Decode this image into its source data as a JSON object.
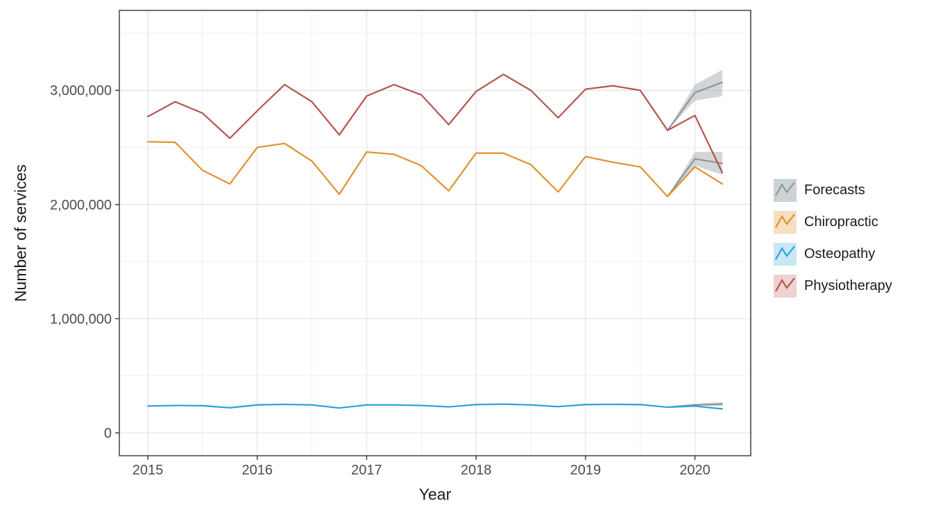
{
  "axes": {
    "x_title": "Year",
    "y_title": "Number of services"
  },
  "legend": {
    "items": [
      {
        "label": "Forecasts",
        "line": "#8c979c",
        "fill": "#ccd3d6"
      },
      {
        "label": "Chiropractic",
        "line": "#e0912f",
        "fill": "#f6dfc1"
      },
      {
        "label": "Osteopathy",
        "line": "#29a3d7",
        "fill": "#c8e7f3"
      },
      {
        "label": "Physiotherapy",
        "line": "#b5534e",
        "fill": "#edd2d0"
      }
    ]
  },
  "theme": {
    "panel_border": "#333333",
    "grid_major": "#e3e3e3",
    "grid_minor": "#f0f0f0",
    "tick_color": "#333333",
    "tick_label_color": "#4d4d4d",
    "background": "#ffffff"
  },
  "chart_data": {
    "type": "line",
    "title": "",
    "xlabel": "Year",
    "ylabel": "Number of services",
    "x_domain": [
      2014.74,
      2020.51
    ],
    "y_domain": [
      -200000,
      3700000
    ],
    "x_ticks": [
      {
        "v": 2015,
        "label": "2015"
      },
      {
        "v": 2016,
        "label": "2016"
      },
      {
        "v": 2017,
        "label": "2017"
      },
      {
        "v": 2018,
        "label": "2018"
      },
      {
        "v": 2019,
        "label": "2019"
      },
      {
        "v": 2020,
        "label": "2020"
      }
    ],
    "x_minor": [
      2015.5,
      2016.5,
      2017.5,
      2018.5,
      2019.5,
      2020.5
    ],
    "y_ticks": [
      {
        "v": 0,
        "label": "0"
      },
      {
        "v": 1000000,
        "label": "1,000,000"
      },
      {
        "v": 2000000,
        "label": "2,000,000"
      },
      {
        "v": 3000000,
        "label": "3,000,000"
      }
    ],
    "y_minor": [
      500000,
      1500000,
      2500000,
      3500000
    ],
    "x_quarters": [
      2015.0,
      2015.25,
      2015.5,
      2015.75,
      2016.0,
      2016.25,
      2016.5,
      2016.75,
      2017.0,
      2017.25,
      2017.5,
      2017.75,
      2018.0,
      2018.25,
      2018.5,
      2018.75,
      2019.0,
      2019.25,
      2019.5,
      2019.75,
      2020.0,
      2020.25
    ],
    "series": [
      {
        "name": "Chiropractic",
        "color": "#e0912f",
        "values": [
          2550000,
          2545000,
          2300000,
          2180000,
          2500000,
          2535000,
          2380000,
          2090000,
          2460000,
          2440000,
          2340000,
          2120000,
          2450000,
          2450000,
          2350000,
          2110000,
          2420000,
          2370000,
          2330000,
          2070000,
          2330000,
          2180000
        ]
      },
      {
        "name": "Osteopathy",
        "color": "#29a3d7",
        "values": [
          235000,
          240000,
          238000,
          220000,
          245000,
          250000,
          245000,
          218000,
          245000,
          245000,
          240000,
          228000,
          248000,
          252000,
          245000,
          230000,
          248000,
          250000,
          248000,
          225000,
          235000,
          210000
        ]
      },
      {
        "name": "Physiotherapy",
        "color": "#b5534e",
        "values": [
          2770000,
          2900000,
          2800000,
          2580000,
          2820000,
          3050000,
          2900000,
          2610000,
          2950000,
          3050000,
          2960000,
          2700000,
          2990000,
          3140000,
          3000000,
          2760000,
          3010000,
          3040000,
          3000000,
          2650000,
          2780000,
          2280000
        ]
      }
    ],
    "forecasts": {
      "name": "Forecasts",
      "color": "#8c979c",
      "ribbon_color": "#9aa5a9",
      "ribbon_alpha": 0.45,
      "x": [
        2019.75,
        2020.0,
        2020.25
      ],
      "series": [
        {
          "target": "Chiropractic",
          "mean": [
            2070000,
            2400000,
            2360000
          ],
          "lower": [
            2070000,
            2340000,
            2260000
          ],
          "upper": [
            2070000,
            2460000,
            2460000
          ]
        },
        {
          "target": "Osteopathy",
          "mean": [
            225000,
            246000,
            252000
          ],
          "lower": [
            225000,
            238000,
            234000
          ],
          "upper": [
            225000,
            254000,
            270000
          ]
        },
        {
          "target": "Physiotherapy",
          "mean": [
            2650000,
            2980000,
            3070000
          ],
          "lower": [
            2650000,
            2910000,
            2950000
          ],
          "upper": [
            2650000,
            3050000,
            3180000
          ]
        }
      ]
    }
  }
}
